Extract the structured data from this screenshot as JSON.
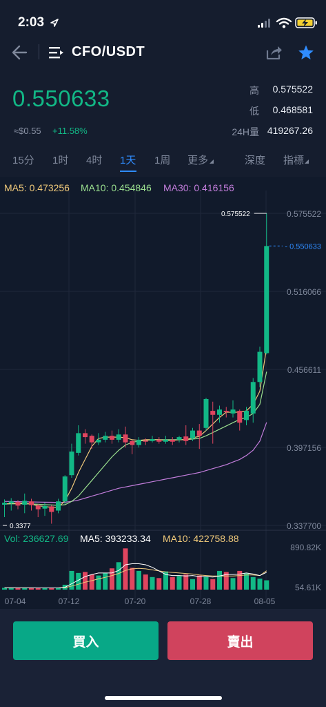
{
  "status_bar": {
    "time": "2:03"
  },
  "header": {
    "pair": "CFO/USDT"
  },
  "ticker": {
    "last_price": "0.550633",
    "fiat_value": "≈$0.55",
    "change": "+11.58%",
    "high_label": "高",
    "high_value": "0.575522",
    "low_label": "低",
    "low_value": "0.468581",
    "vol_label": "24H量",
    "vol_value": "419267.26"
  },
  "tabs": {
    "t15m": "15分",
    "t1h": "1时",
    "t4h": "4时",
    "t1d": "1天",
    "t1w": "1周",
    "more": "更多",
    "depth": "深度",
    "indicator": "指標",
    "active": "1天"
  },
  "ma_legend": {
    "ma5": "MA5: 0.473256",
    "ma10": "MA10: 0.454846",
    "ma30": "MA30: 0.416156"
  },
  "colors": {
    "up": "#12b886",
    "down": "#e0455f",
    "ma5": "#f0c97a",
    "ma10": "#9be08f",
    "ma30": "#c27ddb",
    "accent": "#2f8cff",
    "buy": "#08a887",
    "sell": "#d0435d"
  },
  "chart_data": {
    "type": "candlestick",
    "price_axis_ticks": [
      "0.575522",
      "0.516066",
      "0.456611",
      "0.397156",
      "0.337700"
    ],
    "price_range": [
      0.3377,
      0.575522
    ],
    "current_price_tag": "0.550633",
    "high_marker": "0.575522",
    "low_marker": "0.3377",
    "date_ticks": [
      "07-04",
      "07-12",
      "07-20",
      "07-28",
      "08-05"
    ],
    "candles": [
      {
        "o": 0.3535,
        "c": 0.355,
        "h": 0.3575,
        "l": 0.344
      },
      {
        "o": 0.3545,
        "c": 0.356,
        "h": 0.3585,
        "l": 0.349
      },
      {
        "o": 0.3555,
        "c": 0.3528,
        "h": 0.357,
        "l": 0.35
      },
      {
        "o": 0.3535,
        "c": 0.3565,
        "h": 0.362,
        "l": 0.347
      },
      {
        "o": 0.356,
        "c": 0.3532,
        "h": 0.358,
        "l": 0.349
      },
      {
        "o": 0.3528,
        "c": 0.35,
        "h": 0.354,
        "l": 0.344
      },
      {
        "o": 0.3505,
        "c": 0.3525,
        "h": 0.355,
        "l": 0.345
      },
      {
        "o": 0.3522,
        "c": 0.348,
        "h": 0.353,
        "l": 0.339
      },
      {
        "o": 0.349,
        "c": 0.356,
        "h": 0.358,
        "l": 0.347
      },
      {
        "o": 0.356,
        "c": 0.375,
        "h": 0.376,
        "l": 0.354
      },
      {
        "o": 0.376,
        "c": 0.394,
        "h": 0.4,
        "l": 0.374
      },
      {
        "o": 0.393,
        "c": 0.408,
        "h": 0.414,
        "l": 0.391
      },
      {
        "o": 0.408,
        "c": 0.405,
        "h": 0.411,
        "l": 0.4
      },
      {
        "o": 0.406,
        "c": 0.401,
        "h": 0.407,
        "l": 0.396
      },
      {
        "o": 0.401,
        "c": 0.403,
        "h": 0.408,
        "l": 0.399
      },
      {
        "o": 0.403,
        "c": 0.406,
        "h": 0.409,
        "l": 0.401
      },
      {
        "o": 0.406,
        "c": 0.403,
        "h": 0.41,
        "l": 0.4
      },
      {
        "o": 0.403,
        "c": 0.407,
        "h": 0.411,
        "l": 0.401
      },
      {
        "o": 0.407,
        "c": 0.401,
        "h": 0.413,
        "l": 0.397
      },
      {
        "o": 0.402,
        "c": 0.399,
        "h": 0.403,
        "l": 0.392
      },
      {
        "o": 0.399,
        "c": 0.403,
        "h": 0.405,
        "l": 0.397
      },
      {
        "o": 0.4025,
        "c": 0.4015,
        "h": 0.404,
        "l": 0.399
      },
      {
        "o": 0.402,
        "c": 0.4035,
        "h": 0.406,
        "l": 0.401
      },
      {
        "o": 0.403,
        "c": 0.4015,
        "h": 0.405,
        "l": 0.4
      },
      {
        "o": 0.4015,
        "c": 0.403,
        "h": 0.406,
        "l": 0.4
      },
      {
        "o": 0.403,
        "c": 0.4015,
        "h": 0.405,
        "l": 0.399
      },
      {
        "o": 0.403,
        "c": 0.405,
        "h": 0.406,
        "l": 0.401
      },
      {
        "o": 0.4055,
        "c": 0.402,
        "h": 0.414,
        "l": 0.399
      },
      {
        "o": 0.404,
        "c": 0.41,
        "h": 0.412,
        "l": 0.402
      },
      {
        "o": 0.41,
        "c": 0.406,
        "h": 0.415,
        "l": 0.396
      },
      {
        "o": 0.412,
        "c": 0.434,
        "h": 0.435,
        "l": 0.41
      },
      {
        "o": 0.425,
        "c": 0.422,
        "h": 0.432,
        "l": 0.4
      },
      {
        "o": 0.422,
        "c": 0.426,
        "h": 0.429,
        "l": 0.416
      },
      {
        "o": 0.425,
        "c": 0.424,
        "h": 0.428,
        "l": 0.42
      },
      {
        "o": 0.423,
        "c": 0.426,
        "h": 0.433,
        "l": 0.42
      },
      {
        "o": 0.425,
        "c": 0.416,
        "h": 0.426,
        "l": 0.41
      },
      {
        "o": 0.418,
        "c": 0.425,
        "h": 0.428,
        "l": 0.414
      },
      {
        "o": 0.423,
        "c": 0.447,
        "h": 0.45,
        "l": 0.416
      },
      {
        "o": 0.447,
        "c": 0.47,
        "h": 0.474,
        "l": 0.443
      },
      {
        "o": 0.469,
        "c": 0.5506,
        "h": 0.5755,
        "l": 0.468
      }
    ],
    "ma5": [
      0.354,
      0.3545,
      0.3548,
      0.3546,
      0.3538,
      0.3527,
      0.3521,
      0.3515,
      0.3514,
      0.3565,
      0.366,
      0.378,
      0.388,
      0.398,
      0.404,
      0.405,
      0.405,
      0.405,
      0.4045,
      0.403,
      0.4025,
      0.403,
      0.403,
      0.403,
      0.4025,
      0.4025,
      0.403,
      0.403,
      0.4045,
      0.4055,
      0.41,
      0.415,
      0.42,
      0.424,
      0.424,
      0.424,
      0.425,
      0.43,
      0.44,
      0.4733
    ],
    "ma10": [
      0.354,
      0.3541,
      0.3542,
      0.3542,
      0.354,
      0.3538,
      0.3535,
      0.3533,
      0.353,
      0.3535,
      0.356,
      0.36,
      0.366,
      0.372,
      0.378,
      0.384,
      0.39,
      0.395,
      0.399,
      0.401,
      0.402,
      0.4025,
      0.403,
      0.403,
      0.403,
      0.403,
      0.403,
      0.403,
      0.4035,
      0.404,
      0.406,
      0.4085,
      0.411,
      0.4135,
      0.416,
      0.4185,
      0.42,
      0.423,
      0.43,
      0.4548
    ],
    "ma30": [
      0.356,
      0.3559,
      0.3558,
      0.3557,
      0.3556,
      0.3555,
      0.3554,
      0.3553,
      0.3552,
      0.3553,
      0.356,
      0.357,
      0.3585,
      0.36,
      0.3615,
      0.363,
      0.3645,
      0.366,
      0.367,
      0.368,
      0.369,
      0.37,
      0.371,
      0.372,
      0.373,
      0.374,
      0.375,
      0.376,
      0.377,
      0.378,
      0.3795,
      0.381,
      0.3825,
      0.384,
      0.386,
      0.388,
      0.391,
      0.395,
      0.402,
      0.4162
    ],
    "volume": {
      "legend_vol": "Vol: 236627.69",
      "legend_ma5": "MA5: 393233.34",
      "legend_ma10": "MA10: 422758.88",
      "axis_max_label": "890.82K",
      "axis_min_label": "54.61K",
      "range": [
        54610,
        890820
      ],
      "values": [
        90000,
        85000,
        95000,
        80000,
        88000,
        92000,
        86000,
        94000,
        89000,
        150000,
        420000,
        380000,
        400000,
        350000,
        330000,
        380000,
        470000,
        590000,
        860000,
        480000,
        420000,
        350000,
        300000,
        280000,
        410000,
        300000,
        320000,
        350000,
        260000,
        330000,
        310000,
        260000,
        420000,
        400000,
        280000,
        420000,
        370000,
        300000,
        270000,
        236628
      ],
      "ma5": [
        90000,
        90000,
        88000,
        88000,
        88000,
        88000,
        88000,
        88000,
        88000,
        100000,
        170000,
        240000,
        310000,
        350000,
        380000,
        380000,
        380000,
        430000,
        540000,
        560000,
        560000,
        540000,
        490000,
        420000,
        350000,
        330000,
        330000,
        320000,
        330000,
        310000,
        310000,
        300000,
        320000,
        350000,
        350000,
        360000,
        380000,
        360000,
        330000,
        393233
      ],
      "ma10": [
        90000,
        90000,
        90000,
        90000,
        90000,
        89000,
        89000,
        89000,
        89000,
        92000,
        125000,
        160000,
        200000,
        230000,
        265000,
        295000,
        330000,
        370000,
        430000,
        460000,
        470000,
        460000,
        440000,
        420000,
        400000,
        390000,
        380000,
        370000,
        360000,
        340000,
        330000,
        320000,
        320000,
        320000,
        320000,
        330000,
        340000,
        340000,
        330000,
        422759
      ]
    }
  },
  "actions": {
    "buy": "買入",
    "sell": "賣出"
  }
}
